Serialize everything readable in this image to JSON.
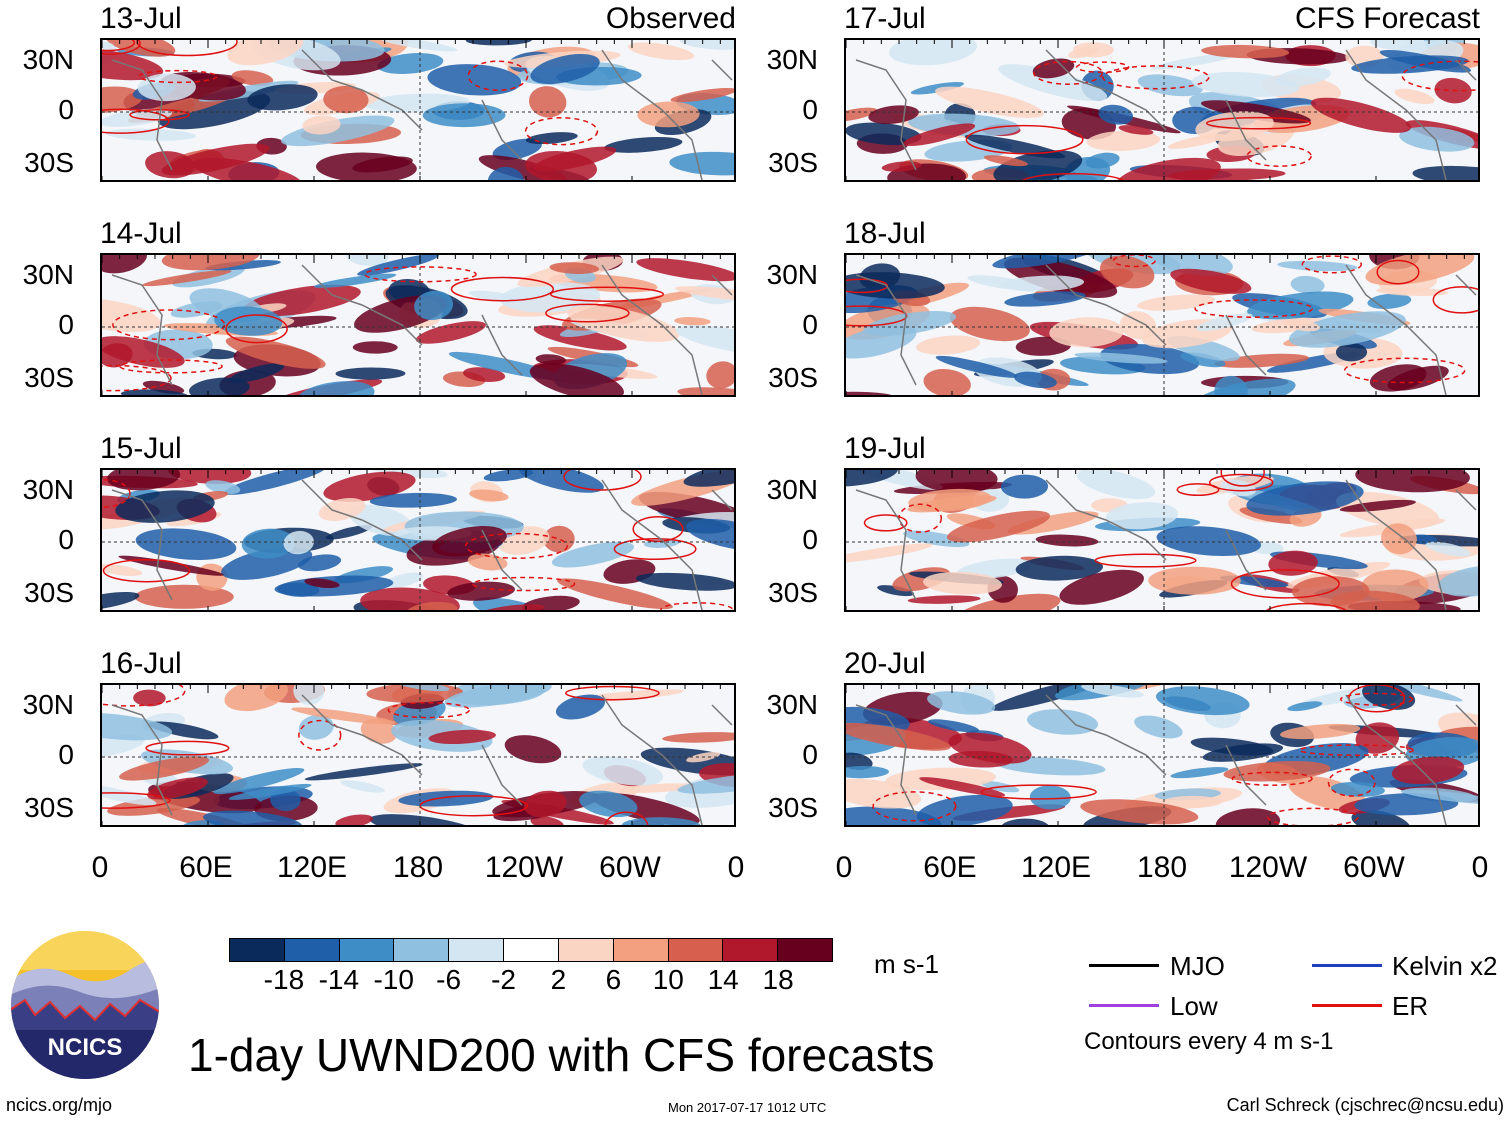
{
  "title": "1-day UWND200 with CFS forecasts",
  "columns": {
    "left_heading": "Observed",
    "right_heading": "CFS Forecast"
  },
  "panels_left": [
    "13-Jul",
    "14-Jul",
    "15-Jul",
    "16-Jul"
  ],
  "panels_right": [
    "17-Jul",
    "18-Jul",
    "19-Jul",
    "20-Jul"
  ],
  "lat_labels": [
    "30N",
    "0",
    "30S"
  ],
  "lon_labels": [
    "0",
    "60E",
    "120E",
    "180",
    "120W",
    "60W",
    "0"
  ],
  "colorbar": {
    "labels": [
      "-18",
      "-14",
      "-10",
      "-6",
      "-2",
      "2",
      "6",
      "10",
      "14",
      "18"
    ],
    "colors": [
      "#0b2a5c",
      "#1f5ea8",
      "#3e8dc7",
      "#8fc0df",
      "#d4e6f2",
      "#ffffff",
      "#fbd5c3",
      "#f2a07f",
      "#d6604d",
      "#b2182b",
      "#67001f"
    ],
    "unit": "m s-1"
  },
  "legend": {
    "items": [
      {
        "label": "MJO",
        "color": "#000000"
      },
      {
        "label": "Kelvin x2",
        "color": "#1f3fbf"
      },
      {
        "label": "Low",
        "color": "#a040e0"
      },
      {
        "label": "ER",
        "color": "#e01010"
      }
    ],
    "contours_note": "Contours every 4 m s-1"
  },
  "logo_text": "NCICS",
  "footer": {
    "website": "ncics.org/mjo",
    "timestamp": "Mon 2017-07-17 1012 UTC",
    "author": "Carl Schreck (cjschrec@ncsu.edu)"
  }
}
